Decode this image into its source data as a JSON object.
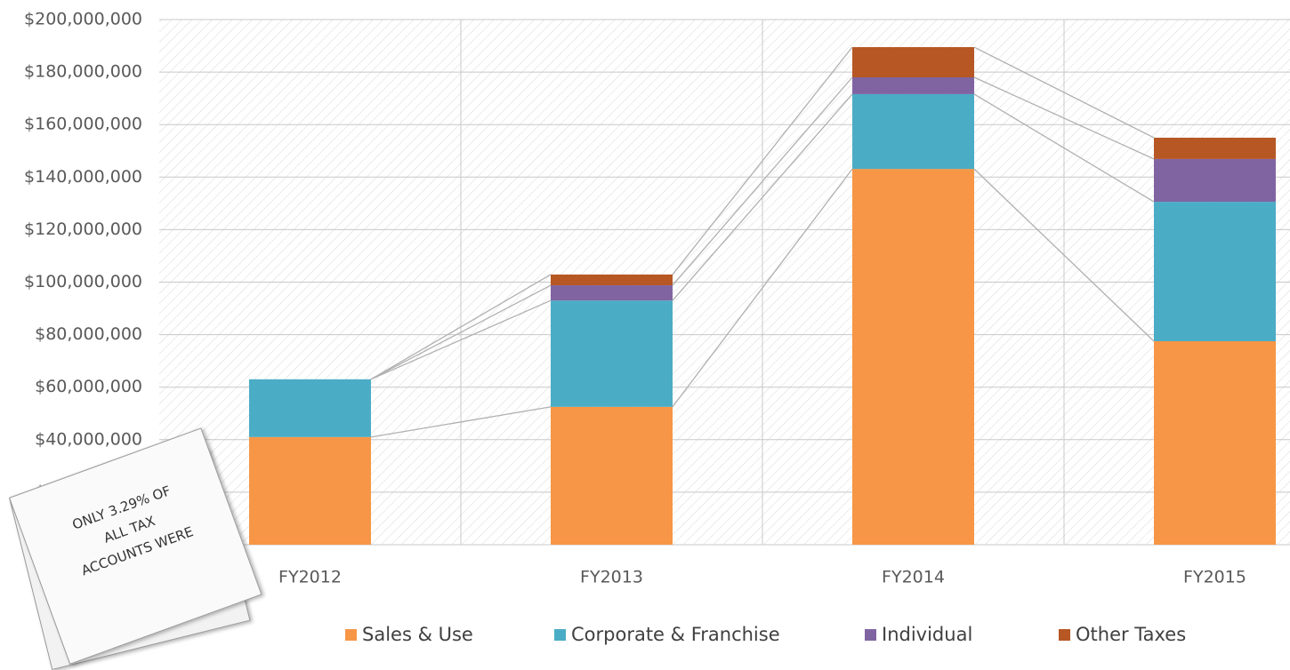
{
  "chart_data": {
    "type": "stacked_bar",
    "categories": [
      "FY2012",
      "FY2013",
      "FY2014",
      "FY2015"
    ],
    "series": [
      {
        "name": "Sales & Use",
        "color": "#f79646",
        "values": [
          41000000,
          52500000,
          143100000,
          77500000
        ]
      },
      {
        "name": "Corporate & Franchise",
        "color": "#4bacc6",
        "values": [
          22000000,
          40500000,
          28500000,
          53100000
        ]
      },
      {
        "name": "Individual",
        "color": "#8064a2",
        "values": [
          0,
          5800000,
          6400000,
          16300000
        ]
      },
      {
        "name": "Other Taxes",
        "color": "#b65724",
        "values": [
          0,
          4100000,
          11500000,
          8100000
        ]
      }
    ],
    "ylim": [
      0,
      200000000
    ],
    "yticks": [
      {
        "value": 0,
        "label": "$0"
      },
      {
        "value": 20000000,
        "label": "$20,000,000"
      },
      {
        "value": 40000000,
        "label": "$40,000,000"
      },
      {
        "value": 60000000,
        "label": "$60,000,000"
      },
      {
        "value": 80000000,
        "label": "$80,000,000"
      },
      {
        "value": 100000000,
        "label": "$100,000,000"
      },
      {
        "value": 120000000,
        "label": "$120,000,000"
      },
      {
        "value": 140000000,
        "label": "$140,000,000"
      },
      {
        "value": 160000000,
        "label": "$160,000,000"
      },
      {
        "value": 180000000,
        "label": "$180,000,000"
      },
      {
        "value": 200000000,
        "label": "$200,000,000"
      }
    ],
    "grid": true,
    "legend": "bottom",
    "series_lines": true
  },
  "note": {
    "lines": [
      "ONLY 3.29% OF",
      "ALL TAX",
      "ACCOUNTS WERE"
    ]
  }
}
